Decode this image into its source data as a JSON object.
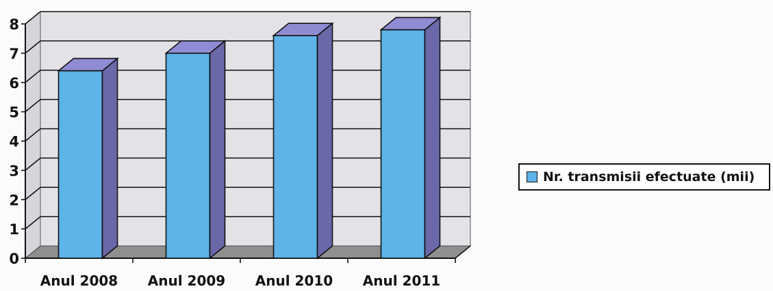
{
  "chart_data": {
    "type": "bar",
    "categories": [
      "Anul 2008",
      "Anul 2009",
      "Anul 2010",
      "Anul 2011"
    ],
    "series": [
      {
        "name": "Nr. transmisii efectuate (mii)",
        "values": [
          6.4,
          7.0,
          7.6,
          7.8
        ]
      }
    ],
    "ylim": [
      0,
      8
    ],
    "yticks": [
      "0",
      "1",
      "2",
      "3",
      "4",
      "5",
      "6",
      "7",
      "8"
    ],
    "grid": true,
    "three_d": true,
    "legend_position": "right",
    "colors": {
      "bar_front": "#5eb3e8",
      "bar_side": "#6a68a8",
      "bar_top": "#8f8cd3",
      "wall": "#e3e3e7",
      "floor": "#8f8f8f"
    }
  }
}
